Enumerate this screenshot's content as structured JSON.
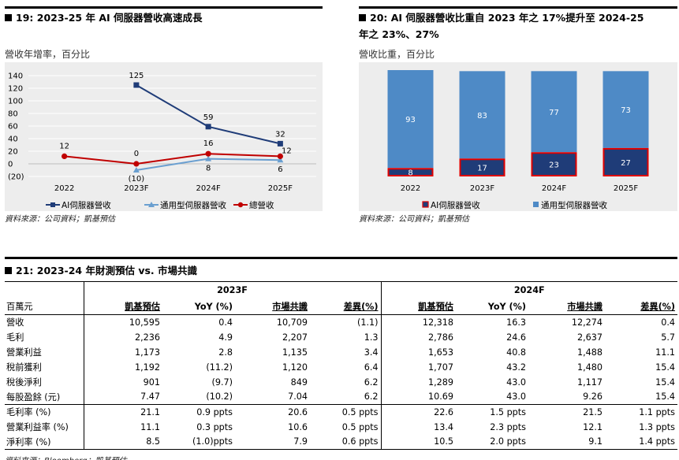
{
  "fig19": {
    "title": "19: 2023-25 年 AI 伺服器營收高速成長",
    "subtitle": "營收年增率，百分比",
    "source": "資料來源：公司資料；凱基預估"
  },
  "fig20": {
    "title_line1": "20: AI 伺服器營收比重自 2023 年之 17%提升至 2024-25",
    "title_line2": "年之 23%、27%",
    "subtitle": "營收比重，百分比",
    "source": "資料來源：公司資料；凱基預估"
  },
  "chart_data": [
    {
      "type": "line",
      "categories": [
        "2022",
        "2023F",
        "2024F",
        "2025F"
      ],
      "y_ticks": [
        "140",
        "120",
        "100",
        "80",
        "60",
        "40",
        "20",
        "0",
        "(20)"
      ],
      "ylim": [
        -20,
        140
      ],
      "grid": true,
      "legend": "bottom",
      "series": [
        {
          "name": "AI伺服器營收",
          "values": [
            null,
            125,
            59,
            32
          ],
          "labels": [
            "",
            "125",
            "59",
            "32"
          ],
          "color": "#1f3c78",
          "marker": "square"
        },
        {
          "name": "通用型伺服器營收",
          "values": [
            null,
            -10,
            8,
            6
          ],
          "labels": [
            "",
            "(10)",
            "8",
            "6"
          ],
          "color": "#6a9fd0",
          "marker": "triangle"
        },
        {
          "name": "總營收",
          "values": [
            12,
            0,
            16,
            12
          ],
          "labels": [
            "12",
            "0",
            "16",
            "12"
          ],
          "color": "#c00000",
          "marker": "circle"
        }
      ]
    },
    {
      "type": "bar",
      "stacked": true,
      "categories": [
        "2022",
        "2023F",
        "2024F",
        "2025F"
      ],
      "ylim": [
        0,
        100
      ],
      "legend": "bottom",
      "series": [
        {
          "name": "AI伺服器營收",
          "values": [
            8,
            17,
            23,
            27
          ],
          "color": "#1f3c78"
        },
        {
          "name": "通用型伺服器營收",
          "values": [
            93,
            83,
            77,
            73
          ],
          "color": "#4e8ac6"
        }
      ]
    }
  ],
  "table21": {
    "title": "21: 2023-24 年財測預估 vs. 市場共識",
    "groups": [
      "2023F",
      "2024F"
    ],
    "unit_label": "百萬元",
    "col_headers": [
      "凱基預估",
      "YoY (%)",
      "市場共識",
      "差異(%)",
      "凱基預估",
      "YoY (%)",
      "市場共識",
      "差異(%)"
    ],
    "rows": [
      {
        "label": "營收",
        "cells": [
          "10,595",
          "0.4",
          "10,709",
          "(1.1)",
          "12,318",
          "16.3",
          "12,274",
          "0.4"
        ]
      },
      {
        "label": "毛利",
        "cells": [
          "2,236",
          "4.9",
          "2,207",
          "1.3",
          "2,786",
          "24.6",
          "2,637",
          "5.7"
        ]
      },
      {
        "label": "營業利益",
        "cells": [
          "1,173",
          "2.8",
          "1,135",
          "3.4",
          "1,653",
          "40.8",
          "1,488",
          "11.1"
        ]
      },
      {
        "label": "稅前獲利",
        "cells": [
          "1,192",
          "(11.2)",
          "1,120",
          "6.4",
          "1,707",
          "43.2",
          "1,480",
          "15.4"
        ]
      },
      {
        "label": "稅後淨利",
        "cells": [
          "901",
          "(9.7)",
          "849",
          "6.2",
          "1,289",
          "43.0",
          "1,117",
          "15.4"
        ]
      },
      {
        "label": "每股盈餘 (元)",
        "cells": [
          "7.47",
          "(10.2)",
          "7.04",
          "6.2",
          "10.69",
          "43.0",
          "9.26",
          "15.4"
        ]
      },
      {
        "label": "毛利率 (%)",
        "cells": [
          "21.1",
          "0.9 ppts",
          "20.6",
          "0.5 ppts",
          "22.6",
          "1.5 ppts",
          "21.5",
          "1.1 ppts"
        ]
      },
      {
        "label": "營業利益率 (%)",
        "cells": [
          "11.1",
          "0.3 ppts",
          "10.6",
          "0.5 ppts",
          "13.4",
          "2.3 ppts",
          "12.1",
          "1.3 ppts"
        ]
      },
      {
        "label": "淨利率 (%)",
        "cells": [
          "8.5",
          "(1.0)ppts",
          "7.9",
          "0.6 ppts",
          "10.5",
          "2.0 ppts",
          "9.1",
          "1.4 ppts"
        ]
      }
    ],
    "source": "資料來源：Bloomberg；凱基預估"
  }
}
